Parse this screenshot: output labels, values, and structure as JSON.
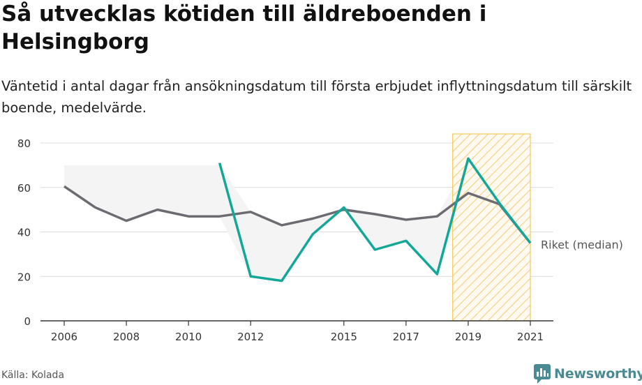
{
  "title": "Så utvecklas kötiden till äldreboenden i Helsingborg",
  "subtitle": "Väntetid i antal dagar från ansökningsdatum till första erbjudet inflyttningsdatum till särskilt boende, medelvärde.",
  "source": "Källa: Kolada",
  "brand": {
    "name": "Newsworthy",
    "color": "#4a8a93",
    "icon": "chat-bar-chart-icon"
  },
  "colors": {
    "helsingborg": "#14a697",
    "riket": "#6d6b72",
    "band": "#f4f4f5",
    "highlight": "#f5c242"
  },
  "chart_data": {
    "type": "line",
    "x": [
      2006,
      2007,
      2008,
      2009,
      2010,
      2011,
      2012,
      2013,
      2014,
      2015,
      2016,
      2017,
      2018,
      2019,
      2020,
      2021
    ],
    "xticks": [
      "2006",
      "2008",
      "2010",
      "2012",
      "2015",
      "2017",
      "2019",
      "2021"
    ],
    "yticks": [
      "0",
      "20",
      "40",
      "60",
      "80"
    ],
    "ylim": [
      0,
      80
    ],
    "grid": true,
    "series": [
      {
        "name": "Riket (median)",
        "values": [
          60.5,
          51,
          45,
          50,
          47,
          47,
          49,
          43,
          46,
          50,
          48,
          45.5,
          47,
          57.5,
          52.5,
          35
        ]
      },
      {
        "name": "Helsingborg",
        "values": [
          null,
          null,
          null,
          null,
          null,
          71,
          20,
          18,
          39,
          51,
          32,
          36,
          21,
          73,
          53,
          35
        ]
      }
    ],
    "band": {
      "x": [
        2006,
        2007,
        2008,
        2009,
        2010,
        2011,
        2012,
        2013,
        2014,
        2015,
        2016,
        2017,
        2018,
        2019,
        2020,
        2021
      ],
      "upper": [
        70,
        70,
        70,
        70,
        70,
        70,
        49,
        43,
        46,
        51,
        48,
        45.5,
        47,
        73,
        53,
        35
      ],
      "lower": [
        60.5,
        51,
        45,
        50,
        47,
        47,
        20,
        18,
        39,
        50,
        32,
        36,
        21,
        57.5,
        52.5,
        35
      ]
    },
    "highlight_range": [
      2018.5,
      2021
    ],
    "annotation": "Riket (median)"
  }
}
